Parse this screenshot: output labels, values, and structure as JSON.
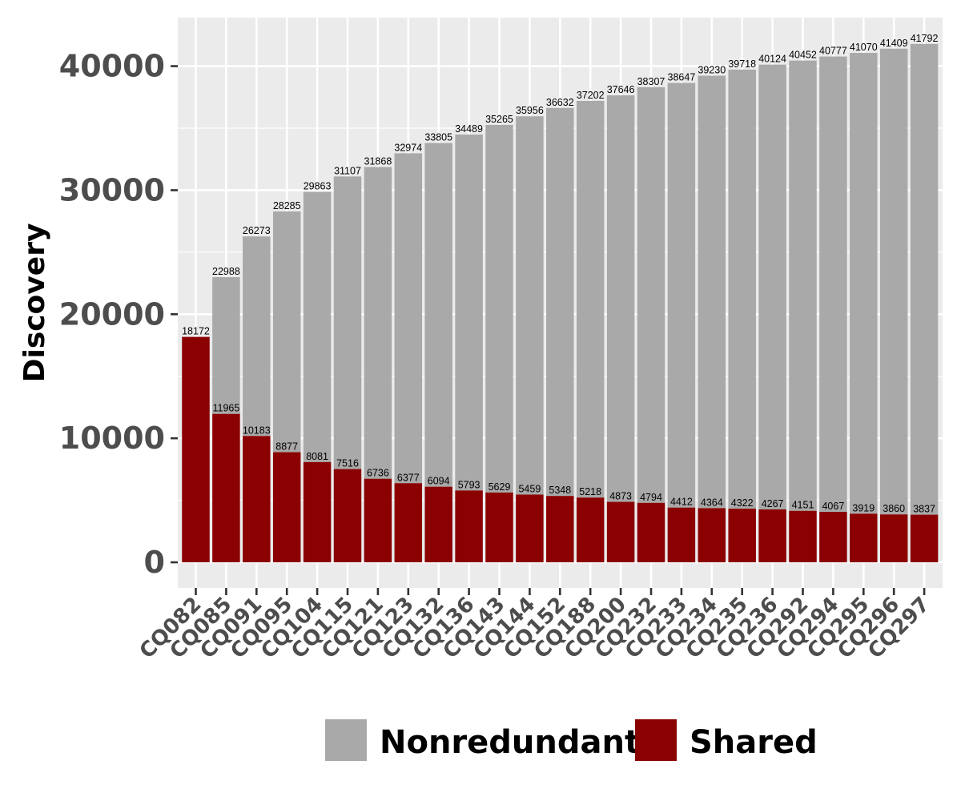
{
  "chart_data": {
    "type": "bar",
    "stacked": true,
    "ylabel": "Discovery",
    "xlabel": "",
    "ylim": [
      0,
      44000
    ],
    "y_ticks": [
      0,
      10000,
      20000,
      30000,
      40000
    ],
    "grid": true,
    "legend_position": "bottom",
    "categories": [
      "CQ082",
      "CQ085",
      "CQ091",
      "CQ095",
      "CQ104",
      "CQ115",
      "CQ121",
      "CQ123",
      "CQ132",
      "CQ136",
      "CQ143",
      "CQ144",
      "CQ152",
      "CQ188",
      "CQ200",
      "CQ232",
      "CQ233",
      "CQ234",
      "CQ235",
      "CQ236",
      "CQ292",
      "CQ294",
      "CQ295",
      "CQ296",
      "CQ297"
    ],
    "series": [
      {
        "name": "Nonredundant",
        "color": "#a9a9a9",
        "totals": [
          18172,
          22988,
          26273,
          28285,
          29863,
          31107,
          31868,
          32974,
          33805,
          34489,
          35265,
          35956,
          36632,
          37202,
          37646,
          38307,
          38647,
          39230,
          39718,
          40124,
          40452,
          40777,
          41070,
          41409,
          41792
        ]
      },
      {
        "name": "Shared",
        "color": "#8b0000",
        "values": [
          18172,
          11965,
          10183,
          8877,
          8081,
          7516,
          6736,
          6377,
          6094,
          5793,
          5629,
          5459,
          5348,
          5218,
          4873,
          4794,
          4412,
          4364,
          4322,
          4267,
          4151,
          4067,
          3919,
          3860,
          3837
        ]
      }
    ]
  }
}
